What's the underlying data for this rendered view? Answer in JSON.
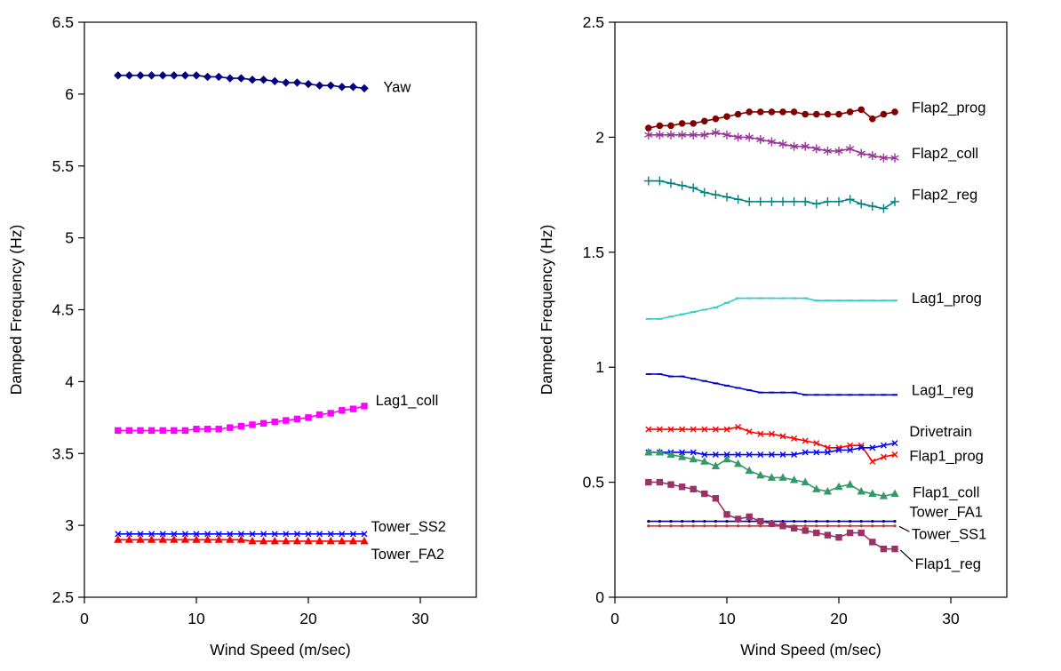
{
  "page": {
    "background": "#ffffff"
  },
  "chart_data": [
    {
      "type": "line",
      "title": "",
      "xlabel": "Wind Speed (m/sec)",
      "ylabel": "Damped Frequency (Hz)",
      "xlim": [
        0,
        35
      ],
      "ylim": [
        2.5,
        6.5
      ],
      "xticks": [
        0,
        10,
        20,
        30
      ],
      "xtick_labels": [
        "0",
        "10",
        "20",
        "30"
      ],
      "yticks": [
        2.5,
        3,
        3.5,
        4,
        4.5,
        5,
        5.5,
        6,
        6.5
      ],
      "ytick_labels": [
        "2.5",
        "3",
        "3.5",
        "4",
        "4.5",
        "5",
        "5.5",
        "6",
        "6.5"
      ],
      "grid": false,
      "legend": "inline-labels",
      "x": [
        3,
        4,
        5,
        6,
        7,
        8,
        9,
        10,
        11,
        12,
        13,
        14,
        15,
        16,
        17,
        18,
        19,
        20,
        21,
        22,
        23,
        24,
        25
      ],
      "series": [
        {
          "name": "Yaw",
          "color": "#000080",
          "marker": "diamond",
          "msize": 4,
          "values": [
            6.13,
            6.13,
            6.13,
            6.13,
            6.13,
            6.13,
            6.13,
            6.13,
            6.12,
            6.12,
            6.11,
            6.11,
            6.1,
            6.1,
            6.09,
            6.08,
            6.08,
            6.07,
            6.06,
            6.06,
            6.05,
            6.05,
            6.04
          ],
          "label": {
            "text": "Yaw",
            "x": 26.7,
            "y": 6.05
          }
        },
        {
          "name": "Lag1_coll",
          "color": "#FF00FF",
          "marker": "square",
          "msize": 4,
          "values": [
            3.66,
            3.66,
            3.66,
            3.66,
            3.66,
            3.66,
            3.66,
            3.67,
            3.67,
            3.67,
            3.68,
            3.69,
            3.7,
            3.71,
            3.72,
            3.73,
            3.74,
            3.75,
            3.77,
            3.78,
            3.8,
            3.81,
            3.83
          ],
          "label": {
            "text": "Lag1_coll",
            "x": 26.0,
            "y": 3.87
          }
        },
        {
          "name": "Tower_SS2",
          "color": "#0000FF",
          "marker": "x",
          "msize": 4,
          "values": [
            2.94,
            2.94,
            2.94,
            2.94,
            2.94,
            2.94,
            2.94,
            2.94,
            2.94,
            2.94,
            2.94,
            2.94,
            2.94,
            2.94,
            2.94,
            2.94,
            2.94,
            2.94,
            2.94,
            2.94,
            2.94,
            2.94,
            2.94
          ],
          "label": {
            "text": "Tower_SS2",
            "x": 25.6,
            "y": 2.99
          }
        },
        {
          "name": "Tower_FA2",
          "color": "#FF0000",
          "marker": "triangle",
          "msize": 4,
          "values": [
            2.9,
            2.9,
            2.9,
            2.9,
            2.9,
            2.9,
            2.9,
            2.9,
            2.9,
            2.9,
            2.9,
            2.9,
            2.89,
            2.89,
            2.89,
            2.89,
            2.89,
            2.89,
            2.89,
            2.89,
            2.89,
            2.89,
            2.89
          ],
          "label": {
            "text": "Tower_FA2",
            "x": 25.6,
            "y": 2.8
          }
        }
      ]
    },
    {
      "type": "line",
      "title": "",
      "xlabel": "Wind Speed (m/sec)",
      "ylabel": "Damped Frequency (Hz)",
      "xlim": [
        0,
        35
      ],
      "ylim": [
        0,
        2.5
      ],
      "xticks": [
        0,
        10,
        20,
        30
      ],
      "xtick_labels": [
        "0",
        "10",
        "20",
        "30"
      ],
      "yticks": [
        0,
        0.5,
        1,
        1.5,
        2,
        2.5
      ],
      "ytick_labels": [
        "0",
        "0.5",
        "1",
        "1.5",
        "2",
        "2.5"
      ],
      "grid": false,
      "legend": "inline-labels",
      "x": [
        3,
        4,
        5,
        6,
        7,
        8,
        9,
        10,
        11,
        12,
        13,
        14,
        15,
        16,
        17,
        18,
        19,
        20,
        21,
        22,
        23,
        24,
        25
      ],
      "series": [
        {
          "name": "Flap2_prog",
          "color": "#800000",
          "marker": "circle",
          "msize": 4,
          "values": [
            2.04,
            2.05,
            2.05,
            2.06,
            2.06,
            2.07,
            2.08,
            2.09,
            2.1,
            2.11,
            2.11,
            2.11,
            2.11,
            2.11,
            2.1,
            2.1,
            2.1,
            2.1,
            2.11,
            2.12,
            2.08,
            2.1,
            2.11
          ],
          "label": {
            "text": "Flap2_prog",
            "x": 26.5,
            "y": 2.13
          }
        },
        {
          "name": "Flap2_coll",
          "color": "#993399",
          "marker": "asterisk",
          "msize": 5,
          "values": [
            2.01,
            2.01,
            2.01,
            2.01,
            2.01,
            2.01,
            2.02,
            2.01,
            2.0,
            2.0,
            1.99,
            1.98,
            1.97,
            1.96,
            1.96,
            1.95,
            1.94,
            1.94,
            1.95,
            1.93,
            1.92,
            1.91,
            1.91
          ],
          "label": {
            "text": "Flap2_coll",
            "x": 26.5,
            "y": 1.93
          }
        },
        {
          "name": "Flap2_reg",
          "color": "#008080",
          "marker": "plus",
          "msize": 5,
          "values": [
            1.81,
            1.81,
            1.8,
            1.79,
            1.78,
            1.76,
            1.75,
            1.74,
            1.73,
            1.72,
            1.72,
            1.72,
            1.72,
            1.72,
            1.72,
            1.71,
            1.72,
            1.72,
            1.73,
            1.71,
            1.7,
            1.69,
            1.72
          ],
          "label": {
            "text": "Flap2_reg",
            "x": 26.5,
            "y": 1.75
          }
        },
        {
          "name": "Lag1_prog",
          "color": "#33CCCC",
          "marker": "dash",
          "msize": 3,
          "values": [
            1.21,
            1.21,
            1.22,
            1.23,
            1.24,
            1.25,
            1.26,
            1.28,
            1.3,
            1.3,
            1.3,
            1.3,
            1.3,
            1.3,
            1.3,
            1.29,
            1.29,
            1.29,
            1.29,
            1.29,
            1.29,
            1.29,
            1.29
          ],
          "label": {
            "text": "Lag1_prog",
            "x": 26.5,
            "y": 1.3
          }
        },
        {
          "name": "Lag1_reg",
          "color": "#0000CC",
          "marker": "dash",
          "msize": 3,
          "values": [
            0.97,
            0.97,
            0.96,
            0.96,
            0.95,
            0.94,
            0.93,
            0.92,
            0.91,
            0.9,
            0.89,
            0.89,
            0.89,
            0.89,
            0.88,
            0.88,
            0.88,
            0.88,
            0.88,
            0.88,
            0.88,
            0.88,
            0.88
          ],
          "label": {
            "text": "Lag1_reg",
            "x": 26.5,
            "y": 0.9
          }
        },
        {
          "name": "Drivetrain",
          "color": "#FF0000",
          "marker": "x",
          "msize": 4,
          "values": [
            0.73,
            0.73,
            0.73,
            0.73,
            0.73,
            0.73,
            0.73,
            0.73,
            0.74,
            0.72,
            0.71,
            0.71,
            0.7,
            0.69,
            0.68,
            0.67,
            0.65,
            0.65,
            0.66,
            0.66,
            0.59,
            0.61,
            0.62
          ],
          "label": {
            "text": "Drivetrain",
            "x": 26.3,
            "y": 0.72
          }
        },
        {
          "name": "Flap1_prog",
          "color": "#0000FF",
          "marker": "x",
          "msize": 4,
          "values": [
            0.63,
            0.63,
            0.63,
            0.63,
            0.63,
            0.62,
            0.62,
            0.62,
            0.62,
            0.62,
            0.62,
            0.62,
            0.62,
            0.62,
            0.63,
            0.63,
            0.63,
            0.64,
            0.64,
            0.65,
            0.65,
            0.66,
            0.67
          ],
          "label": {
            "text": "Flap1_prog",
            "x": 26.3,
            "y": 0.615
          }
        },
        {
          "name": "Flap1_coll",
          "color": "#339966",
          "marker": "triangle",
          "msize": 4,
          "values": [
            0.63,
            0.63,
            0.62,
            0.61,
            0.6,
            0.59,
            0.57,
            0.6,
            0.58,
            0.55,
            0.53,
            0.52,
            0.52,
            0.51,
            0.5,
            0.47,
            0.46,
            0.48,
            0.49,
            0.46,
            0.45,
            0.44,
            0.45
          ],
          "label": {
            "text": "Flap1_coll",
            "x": 26.6,
            "y": 0.455
          }
        },
        {
          "name": "Tower_FA1",
          "color": "#000080",
          "marker": "dot",
          "msize": 2,
          "values": [
            0.33,
            0.33,
            0.33,
            0.33,
            0.33,
            0.33,
            0.33,
            0.33,
            0.33,
            0.33,
            0.33,
            0.33,
            0.33,
            0.33,
            0.33,
            0.33,
            0.33,
            0.33,
            0.33,
            0.33,
            0.33,
            0.33,
            0.33
          ],
          "label": {
            "text": "Tower_FA1",
            "x": 26.3,
            "y": 0.37
          }
        },
        {
          "name": "Tower_SS1",
          "color": "#CC3333",
          "marker": "dot",
          "msize": 2,
          "values": [
            0.31,
            0.31,
            0.31,
            0.31,
            0.31,
            0.31,
            0.31,
            0.31,
            0.31,
            0.31,
            0.31,
            0.31,
            0.31,
            0.31,
            0.31,
            0.31,
            0.31,
            0.31,
            0.31,
            0.31,
            0.31,
            0.31,
            0.31
          ],
          "label": {
            "text": "Tower_SS1",
            "x": 26.5,
            "y": 0.275,
            "leader": [
              26.3,
              0.285,
              25.4,
              0.308
            ]
          }
        },
        {
          "name": "Flap1_reg",
          "color": "#993366",
          "marker": "square",
          "msize": 4,
          "values": [
            0.5,
            0.5,
            0.49,
            0.48,
            0.47,
            0.45,
            0.43,
            0.36,
            0.34,
            0.35,
            0.33,
            0.32,
            0.31,
            0.3,
            0.29,
            0.28,
            0.27,
            0.26,
            0.28,
            0.28,
            0.24,
            0.21,
            0.21
          ],
          "label": {
            "text": "Flap1_reg",
            "x": 26.8,
            "y": 0.145,
            "leader": [
              26.6,
              0.155,
              25.5,
              0.205
            ]
          }
        }
      ]
    }
  ]
}
